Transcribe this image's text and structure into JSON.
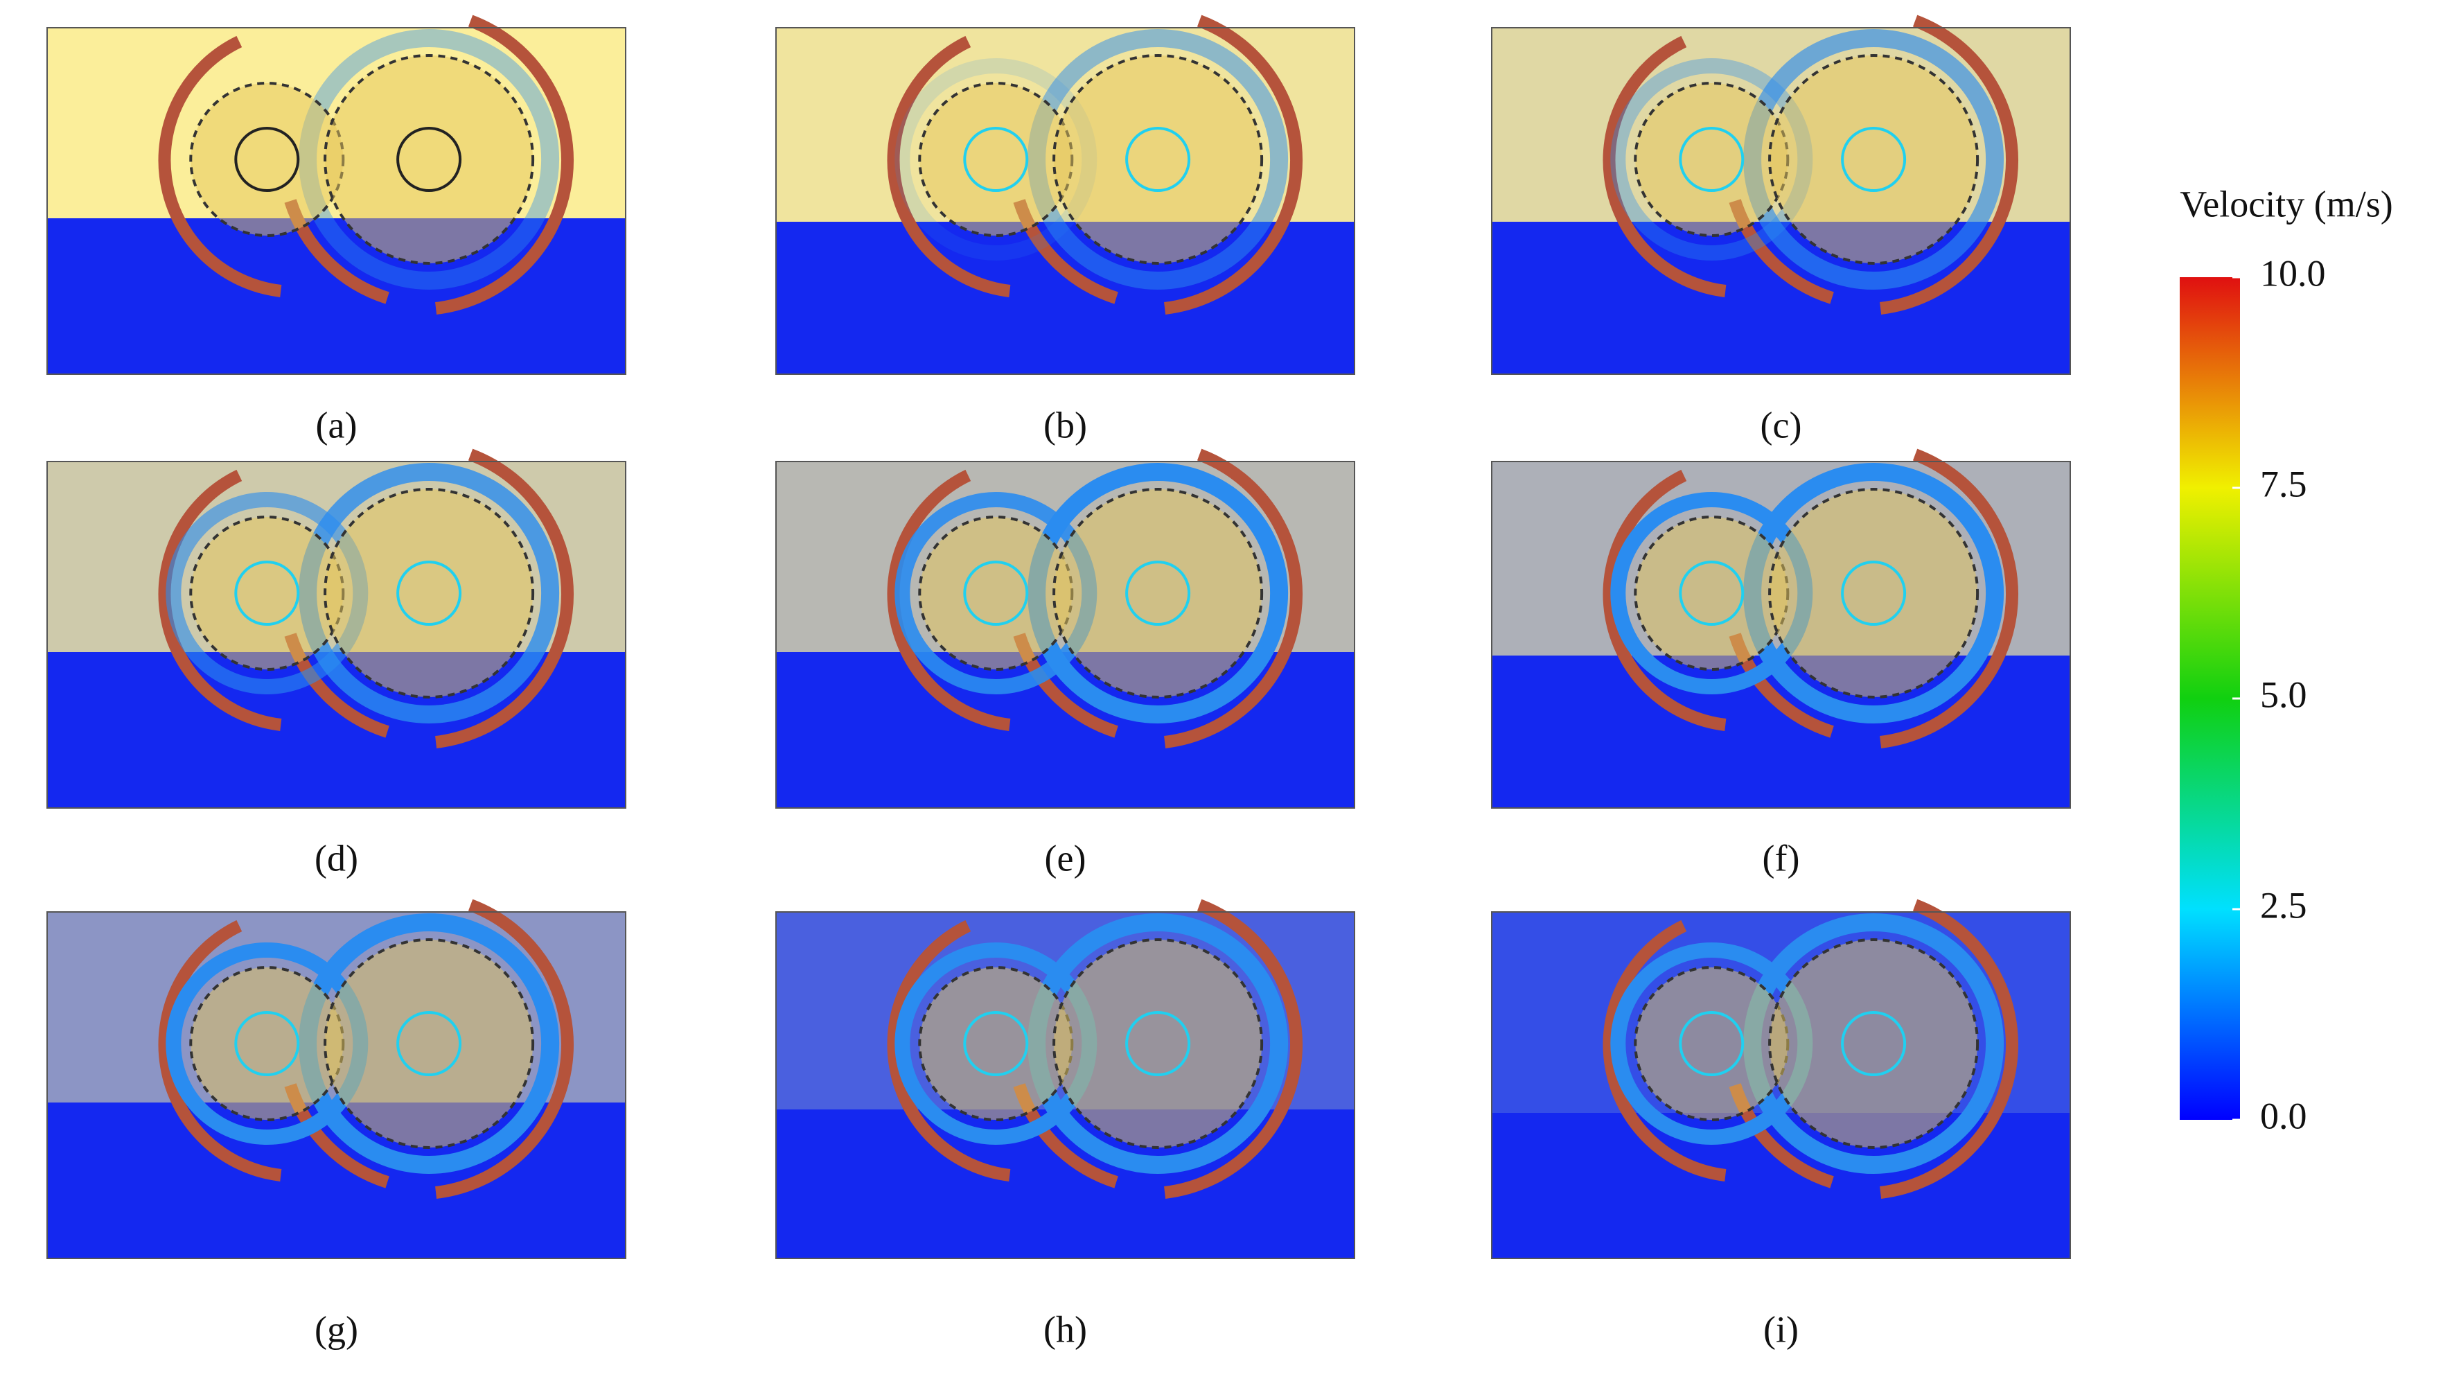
{
  "panels": [
    {
      "label": "(a)"
    },
    {
      "label": "(b)"
    },
    {
      "label": "(c)"
    },
    {
      "label": "(d)"
    },
    {
      "label": "(e)"
    },
    {
      "label": "(f)"
    },
    {
      "label": "(g)"
    },
    {
      "label": "(h)"
    },
    {
      "label": "(i)"
    }
  ],
  "colorbar": {
    "title": "Velocity (m/s)",
    "range": [
      0,
      10
    ],
    "ticks": [
      {
        "value": 10,
        "label": "10.0"
      },
      {
        "value": 7.5,
        "label": "7.5"
      },
      {
        "value": 5,
        "label": "5.0"
      },
      {
        "value": 2.5,
        "label": "2.5"
      },
      {
        "value": 0,
        "label": "0.0"
      }
    ]
  }
}
